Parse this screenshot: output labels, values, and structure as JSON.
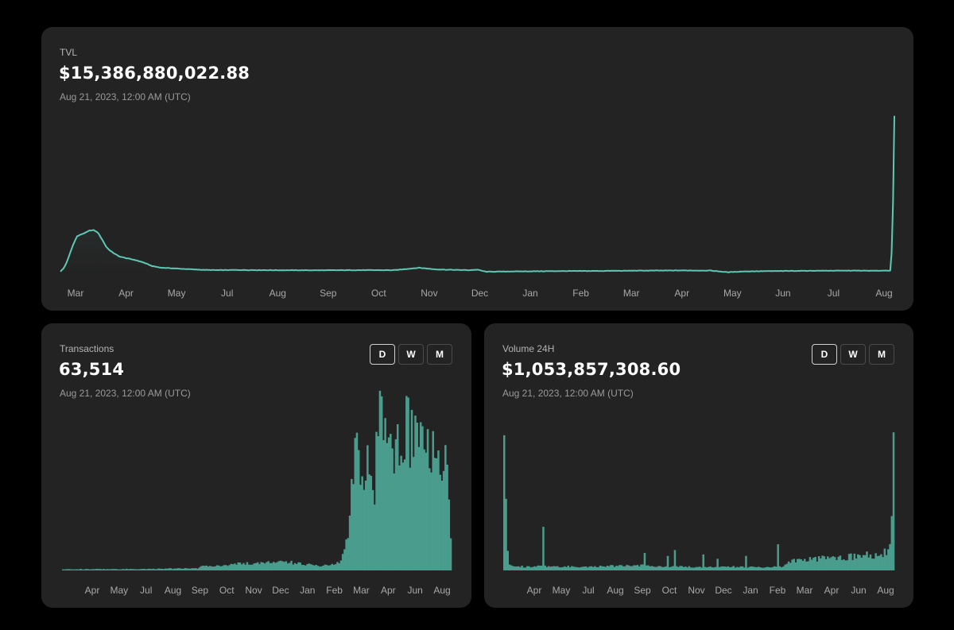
{
  "colors": {
    "background": "#000000",
    "card": "#232323",
    "accent": "#5ec8b4",
    "accent_fill": "#4a9c8c",
    "label": "#b4b4b4",
    "axis": "#a8a8a8"
  },
  "tvl": {
    "label": "TVL",
    "value": "$15,386,880,022.88",
    "date": "Aug 21, 2023, 12:00 AM (UTC)"
  },
  "transactions": {
    "label": "Transactions",
    "value": "63,514",
    "date": "Aug 21, 2023, 12:00 AM (UTC)",
    "buttons": [
      "D",
      "W",
      "M"
    ],
    "active_button": "D"
  },
  "volume": {
    "label": "Volume 24H",
    "value": "$1,053,857,308.60",
    "date": "Aug 21, 2023, 12:00 AM (UTC)",
    "buttons": [
      "D",
      "W",
      "M"
    ],
    "active_button": "D"
  },
  "chart_data": [
    {
      "id": "tvl",
      "type": "area",
      "title": "TVL",
      "xlabel": "",
      "ylabel": "",
      "ylim": [
        0,
        100
      ],
      "grid": false,
      "tick_labels": [
        "Mar",
        "Apr",
        "May",
        "Jul",
        "Aug",
        "Sep",
        "Oct",
        "Nov",
        "Dec",
        "Jan",
        "Feb",
        "Mar",
        "Apr",
        "May",
        "Jun",
        "Jul",
        "Aug"
      ],
      "x": [
        0,
        0.004,
        0.008,
        0.012,
        0.016,
        0.02,
        0.025,
        0.03,
        0.035,
        0.04,
        0.045,
        0.05,
        0.055,
        0.06,
        0.07,
        0.08,
        0.09,
        0.1,
        0.11,
        0.12,
        0.13,
        0.15,
        0.17,
        0.19,
        0.21,
        0.25,
        0.3,
        0.35,
        0.4,
        0.43,
        0.45,
        0.47,
        0.49,
        0.5,
        0.51,
        0.55,
        0.6,
        0.65,
        0.7,
        0.75,
        0.78,
        0.8,
        0.82,
        0.85,
        0.9,
        0.95,
        0.98,
        0.995,
        0.997,
        0.999,
        1.0
      ],
      "values": [
        1.2,
        3.2,
        7.5,
        13.5,
        19.2,
        23.5,
        24.8,
        25.8,
        27.2,
        27.4,
        25.8,
        21.5,
        16.8,
        14.2,
        10.8,
        9.5,
        8.4,
        6.8,
        4.6,
        3.6,
        3.3,
        2.7,
        2.2,
        2.0,
        2.1,
        2.0,
        1.9,
        2.0,
        2.0,
        3.5,
        2.5,
        2.2,
        2.0,
        2.3,
        1.0,
        1.2,
        1.4,
        1.5,
        1.7,
        1.8,
        1.7,
        0.7,
        1.2,
        1.4,
        1.6,
        1.7,
        1.6,
        1.8,
        15.0,
        60.0,
        100.0
      ]
    },
    {
      "id": "transactions",
      "type": "bar",
      "title": "Transactions",
      "xlabel": "",
      "ylabel": "",
      "ylim": [
        0,
        100
      ],
      "grid": false,
      "tick_labels": [
        "Apr",
        "May",
        "Jul",
        "Aug",
        "Sep",
        "Oct",
        "Nov",
        "Dec",
        "Jan",
        "Feb",
        "Mar",
        "Apr",
        "Jun",
        "Aug"
      ],
      "x": [
        0,
        0.2,
        0.35,
        0.36,
        0.42,
        0.5,
        0.55,
        0.6,
        0.66,
        0.7,
        0.72,
        0.74,
        0.75,
        0.76,
        0.77,
        0.78,
        0.79,
        0.8,
        0.81,
        0.82,
        0.83,
        0.85,
        0.87,
        0.88,
        0.9,
        0.92,
        0.94,
        0.96,
        0.98,
        0.99,
        1.0
      ],
      "values": [
        0.8,
        0.9,
        1.4,
        2.8,
        3.5,
        5.0,
        5.8,
        4.8,
        2.8,
        3.5,
        7.5,
        30.0,
        70.0,
        76.0,
        52.0,
        68.0,
        64.0,
        42.0,
        80.0,
        98.0,
        86.0,
        74.0,
        86.0,
        94.0,
        84.0,
        90.0,
        86.0,
        78.0,
        72.0,
        61.0,
        24.0
      ]
    },
    {
      "id": "volume",
      "type": "bar",
      "title": "Volume 24H",
      "xlabel": "",
      "ylabel": "",
      "ylim": [
        0,
        100
      ],
      "grid": false,
      "tick_labels": [
        "Apr",
        "May",
        "Jul",
        "Aug",
        "Sep",
        "Oct",
        "Nov",
        "Dec",
        "Jan",
        "Feb",
        "Mar",
        "Apr",
        "Jun",
        "Aug"
      ],
      "x": [
        0,
        0.002,
        0.01,
        0.05,
        0.1,
        0.2,
        0.35,
        0.45,
        0.6,
        0.68,
        0.72,
        0.73,
        0.8,
        0.9,
        0.97,
        0.99,
        0.997,
        1.0
      ],
      "values": [
        4.0,
        93.0,
        4.0,
        2.5,
        3.0,
        2.5,
        3.5,
        2.5,
        2.5,
        2.0,
        3.0,
        6.0,
        8.0,
        9.5,
        11.0,
        12.0,
        40.0,
        95.0
      ],
      "spikes": [
        {
          "x": 0.002,
          "value": 93.0
        },
        {
          "x": 0.1,
          "value": 30.0
        },
        {
          "x": 0.36,
          "value": 12.0
        },
        {
          "x": 0.42,
          "value": 10.0
        },
        {
          "x": 0.44,
          "value": 14.0
        },
        {
          "x": 0.51,
          "value": 11.0
        },
        {
          "x": 0.55,
          "value": 8.0
        },
        {
          "x": 0.62,
          "value": 10.0
        },
        {
          "x": 0.705,
          "value": 18.0
        },
        {
          "x": 0.84,
          "value": 9.0
        },
        {
          "x": 0.93,
          "value": 13.0
        },
        {
          "x": 0.975,
          "value": 15.0
        },
        {
          "x": 1.0,
          "value": 95.0
        }
      ]
    }
  ]
}
